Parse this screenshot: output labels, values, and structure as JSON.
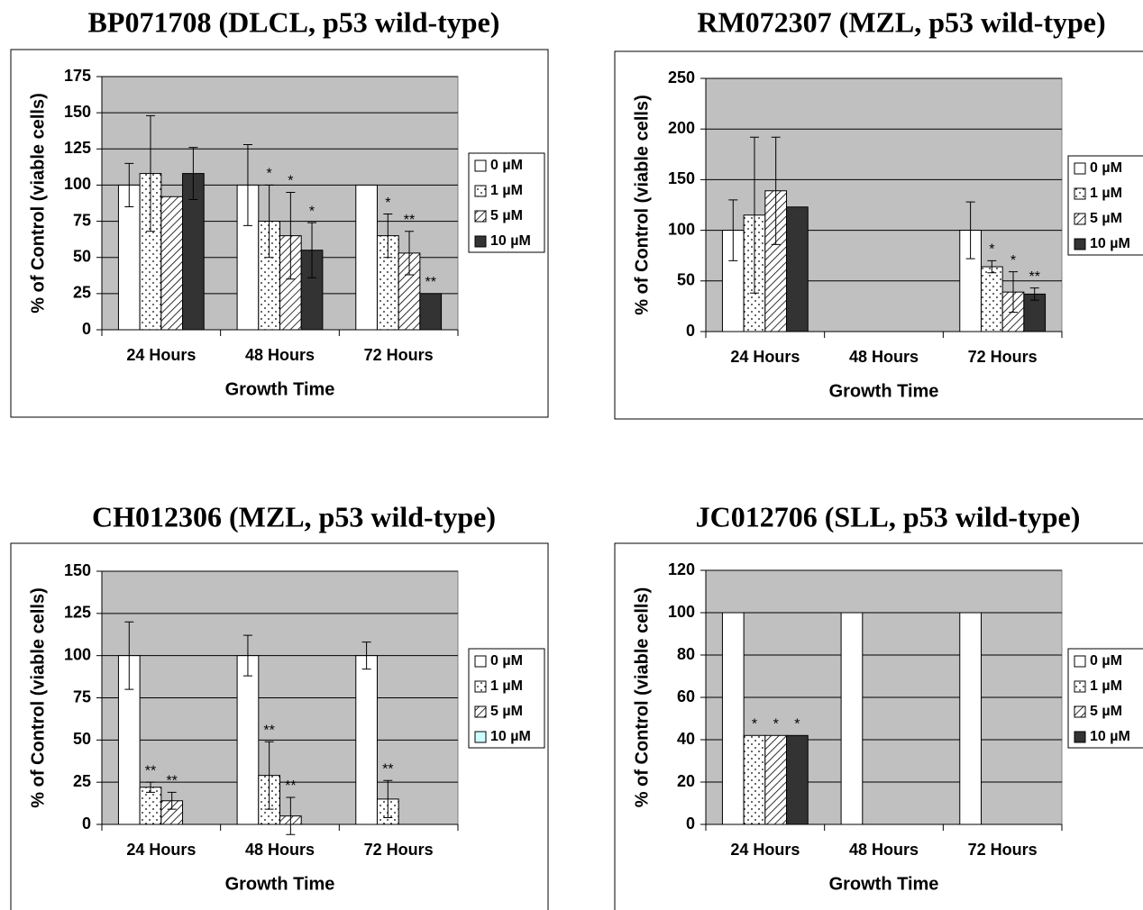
{
  "chart_data": [
    {
      "type": "bar",
      "title": "BP071708 (DLCL, p53 wild-type)",
      "x_label": "Growth Time",
      "y_label": "% of Control (viable cells)",
      "categories": [
        "24 Hours",
        "48 Hours",
        "72 Hours"
      ],
      "ylim": [
        0,
        175
      ],
      "yticks": [
        0,
        25,
        50,
        75,
        100,
        125,
        150,
        175
      ],
      "grid": true,
      "legend": "right",
      "series": [
        {
          "name": "0 µM",
          "color": "#ffffff",
          "pattern": "solid",
          "values": [
            100,
            100,
            100
          ],
          "errors": [
            15,
            28,
            null
          ],
          "annotations": [
            null,
            null,
            null
          ]
        },
        {
          "name": "1 µM",
          "color": "#ffffff",
          "pattern": "dots",
          "values": [
            108,
            75,
            65
          ],
          "errors": [
            40,
            25,
            15
          ],
          "annotations": [
            null,
            "*",
            "*"
          ]
        },
        {
          "name": "5 µM",
          "color": "#ffffff",
          "pattern": "hatch",
          "values": [
            92,
            65,
            53
          ],
          "errors": [
            null,
            30,
            15
          ],
          "annotations": [
            null,
            "*",
            "**"
          ]
        },
        {
          "name": "10 µM",
          "color": "#333333",
          "pattern": "solid",
          "values": [
            108,
            55,
            25
          ],
          "errors": [
            18,
            19,
            null
          ],
          "annotations": [
            null,
            "*",
            "**"
          ]
        }
      ]
    },
    {
      "type": "bar",
      "title": "RM072307 (MZL, p53 wild-type)",
      "x_label": "Growth Time",
      "y_label": "% of Control (viable cells)",
      "categories": [
        "24 Hours",
        "48 Hours",
        "72 Hours"
      ],
      "ylim": [
        0,
        250
      ],
      "yticks": [
        0,
        50,
        100,
        150,
        200,
        250
      ],
      "grid": true,
      "legend": "right",
      "series": [
        {
          "name": "0 µM",
          "color": "#ffffff",
          "pattern": "solid",
          "values": [
            100,
            0,
            100
          ],
          "errors": [
            30,
            null,
            28
          ],
          "annotations": [
            null,
            null,
            null
          ]
        },
        {
          "name": "1 µM",
          "color": "#ffffff",
          "pattern": "dots",
          "values": [
            115,
            0,
            64
          ],
          "errors": [
            77,
            null,
            6
          ],
          "annotations": [
            null,
            null,
            "*"
          ]
        },
        {
          "name": "5 µM",
          "color": "#ffffff",
          "pattern": "hatch",
          "values": [
            139,
            0,
            39
          ],
          "errors": [
            53,
            null,
            20
          ],
          "annotations": [
            null,
            null,
            "*"
          ]
        },
        {
          "name": "10 µM",
          "color": "#333333",
          "pattern": "solid",
          "values": [
            123,
            0,
            37
          ],
          "errors": [
            null,
            null,
            6
          ],
          "annotations": [
            null,
            null,
            "**"
          ]
        }
      ]
    },
    {
      "type": "bar",
      "title": "CH012306 (MZL, p53 wild-type)",
      "x_label": "Growth Time",
      "y_label": "% of Control (viable cells)",
      "categories": [
        "24 Hours",
        "48 Hours",
        "72 Hours"
      ],
      "ylim": [
        0,
        150
      ],
      "yticks": [
        0,
        25,
        50,
        75,
        100,
        125,
        150
      ],
      "grid": true,
      "legend": "right",
      "series": [
        {
          "name": "0 µM",
          "color": "#ffffff",
          "pattern": "solid",
          "values": [
            100,
            100,
            100
          ],
          "errors": [
            20,
            12,
            8
          ],
          "annotations": [
            null,
            null,
            null
          ]
        },
        {
          "name": "1 µM",
          "color": "#ffffff",
          "pattern": "dots",
          "values": [
            22,
            29,
            15
          ],
          "errors": [
            3,
            20,
            11
          ],
          "annotations": [
            "**",
            "**",
            "**"
          ]
        },
        {
          "name": "5 µM",
          "color": "#ffffff",
          "pattern": "hatch",
          "values": [
            14,
            5,
            0
          ],
          "errors": [
            5,
            11,
            null
          ],
          "annotations": [
            "**",
            "**",
            null
          ]
        },
        {
          "name": "10 µM",
          "color": "#ccffff",
          "pattern": "solid",
          "values": [
            0,
            0,
            0
          ],
          "errors": [
            null,
            null,
            null
          ],
          "annotations": [
            null,
            null,
            null
          ]
        }
      ]
    },
    {
      "type": "bar",
      "title": "JC012706 (SLL, p53 wild-type)",
      "x_label": "Growth Time",
      "y_label": "% of Control (viable cells)",
      "categories": [
        "24 Hours",
        "48 Hours",
        "72 Hours"
      ],
      "ylim": [
        0,
        120
      ],
      "yticks": [
        0,
        20,
        40,
        60,
        80,
        100,
        120
      ],
      "grid": true,
      "legend": "right",
      "series": [
        {
          "name": "0 µM",
          "color": "#ffffff",
          "pattern": "solid",
          "values": [
            100,
            100,
            100
          ],
          "errors": [
            null,
            null,
            null
          ],
          "annotations": [
            null,
            null,
            null
          ]
        },
        {
          "name": "1 µM",
          "color": "#ffffff",
          "pattern": "dots",
          "values": [
            42,
            0,
            0
          ],
          "errors": [
            null,
            null,
            null
          ],
          "annotations": [
            "*",
            null,
            null
          ]
        },
        {
          "name": "5 µM",
          "color": "#ffffff",
          "pattern": "hatch",
          "values": [
            42,
            0,
            0
          ],
          "errors": [
            null,
            null,
            null
          ],
          "annotations": [
            "*",
            null,
            null
          ]
        },
        {
          "name": "10 µM",
          "color": "#333333",
          "pattern": "solid",
          "values": [
            42,
            0,
            0
          ],
          "errors": [
            null,
            null,
            null
          ],
          "annotations": [
            "*",
            null,
            null
          ]
        }
      ]
    }
  ]
}
